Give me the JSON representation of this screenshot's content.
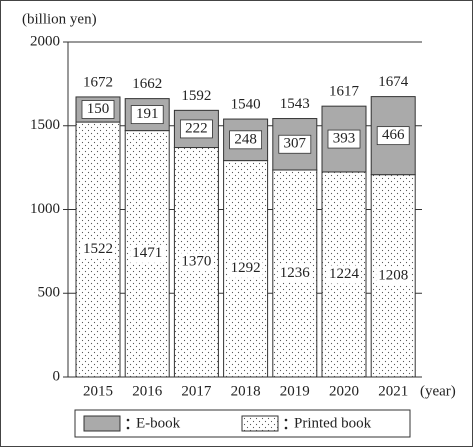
{
  "chart_data": {
    "type": "stacked-bar",
    "y_label": "(billion yen)",
    "x_label": "(year)",
    "categories": [
      "2015",
      "2016",
      "2017",
      "2018",
      "2019",
      "2020",
      "2021"
    ],
    "series": [
      {
        "name": "Printed book",
        "color": "#ffffff",
        "pattern": "dots",
        "values": [
          1522,
          1471,
          1370,
          1292,
          1236,
          1224,
          1208
        ]
      },
      {
        "name": "E-book",
        "color": "#aaaaaa",
        "values": [
          150,
          191,
          222,
          248,
          307,
          393,
          466
        ]
      }
    ],
    "totals": [
      1672,
      1662,
      1592,
      1540,
      1543,
      1617,
      1674
    ],
    "ylim": [
      0,
      2000
    ],
    "yticks": [
      0,
      500,
      1000,
      1500,
      2000
    ],
    "grid": true
  }
}
